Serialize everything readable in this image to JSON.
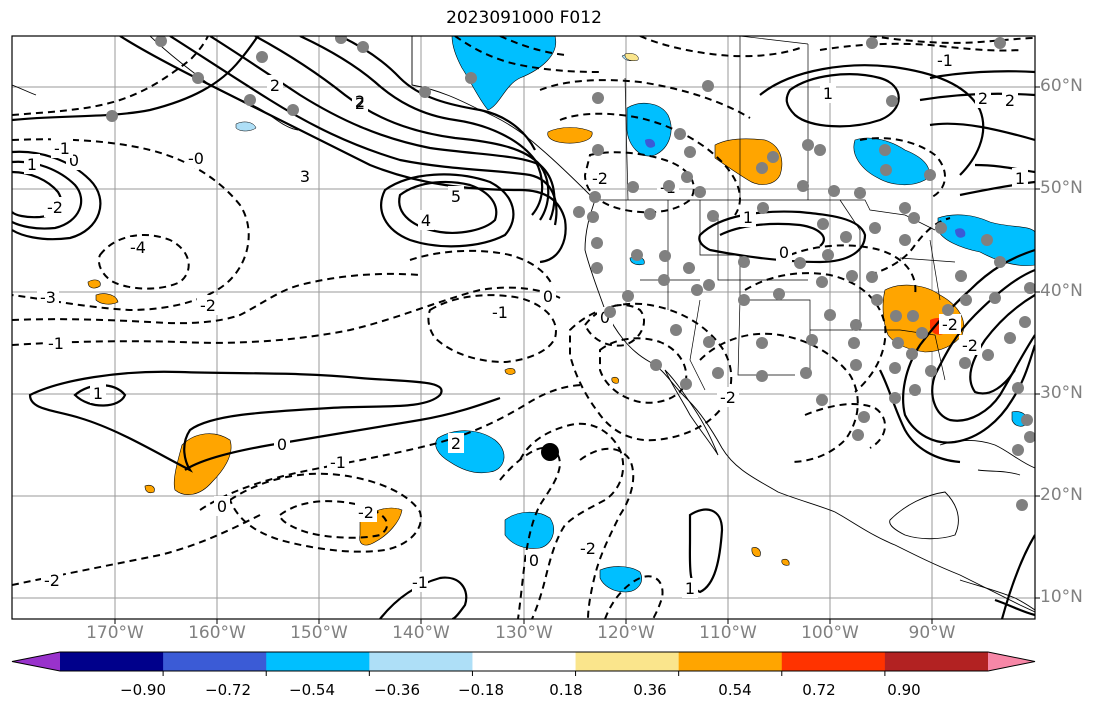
{
  "title": "2023091000 F012",
  "lon_labels": [
    "170°W",
    "160°W",
    "150°W",
    "140°W",
    "130°W",
    "120°W",
    "110°W",
    "100°W",
    "90°W"
  ],
  "lat_labels": [
    "60°N",
    "50°N",
    "40°N",
    "30°N",
    "20°N",
    "10°N"
  ],
  "colorbar": {
    "tick_labels": [
      "−0.90",
      "−0.72",
      "−0.54",
      "−0.36",
      "−0.18",
      "0.18",
      "0.36",
      "0.54",
      "0.72",
      "0.90"
    ],
    "colors": [
      "#9932cc",
      "#00008b",
      "#3b5bd6",
      "#00bfff",
      "#aedff7",
      "#ffffff",
      "#fae58c",
      "#ffa500",
      "#ff3300",
      "#b22222",
      "#f787a7"
    ]
  },
  "contour_labels": [
    "1",
    "0",
    "-1",
    "-2",
    "-3",
    "-4",
    "5",
    "4",
    "3",
    "2",
    "-0",
    "0",
    "1",
    "-1",
    "-2",
    "2",
    "-2",
    "-1",
    "2",
    "1",
    "2",
    "-1",
    "1",
    "0",
    "-2",
    "-1",
    "0",
    "-2",
    "-2",
    "-1",
    "-2",
    "-2",
    "0",
    "0",
    "-2",
    "0",
    "2",
    "1",
    "2",
    "-2",
    "1",
    "-1"
  ],
  "marker": "station-marker"
}
